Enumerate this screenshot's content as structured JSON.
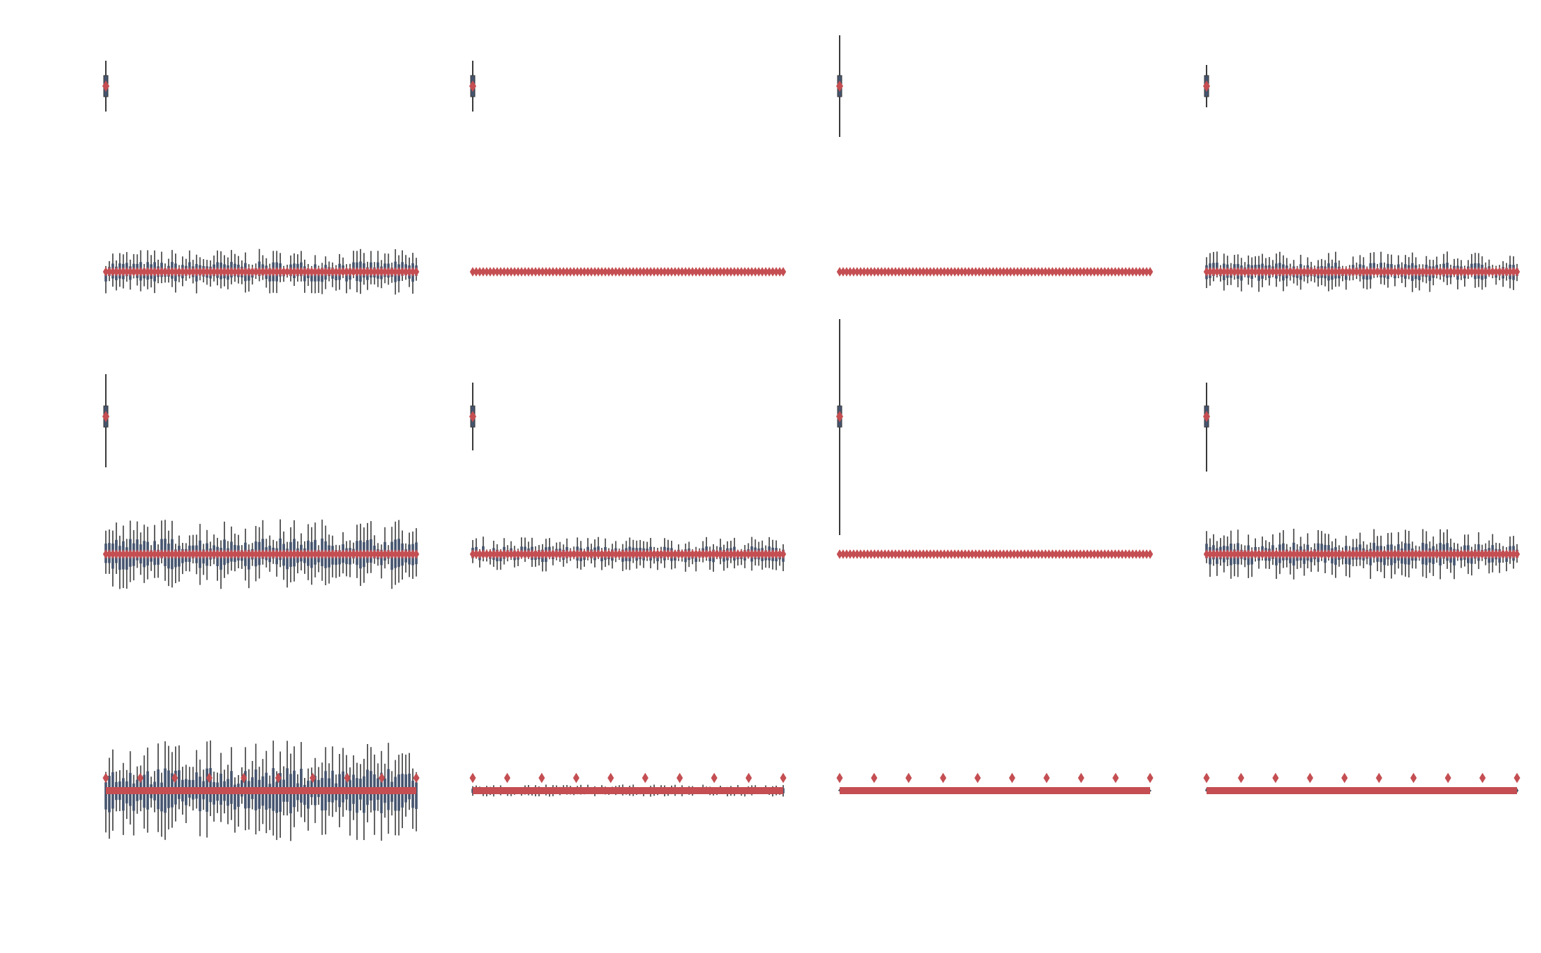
{
  "figure": {
    "background": "#ffffff",
    "colors": {
      "violin": "#45546e",
      "outline": "#3a3a3a",
      "median": "#c44e52"
    }
  },
  "chart_data": [
    {
      "type": "violin",
      "row": 0,
      "col": 0,
      "title": "",
      "xlabel": "",
      "ylabel": "",
      "grid": false,
      "series": [
        {
          "values": [
            {
              "x": 0,
              "median": 0,
              "lo": -0.6,
              "hi": 0.6
            }
          ]
        }
      ]
    },
    {
      "type": "violin",
      "row": 0,
      "col": 1,
      "title": "",
      "xlabel": "",
      "ylabel": "",
      "grid": false,
      "series": [
        {
          "values": [
            {
              "x": 0,
              "median": 0,
              "lo": -0.6,
              "hi": 0.6
            }
          ]
        }
      ]
    },
    {
      "type": "violin",
      "row": 0,
      "col": 2,
      "title": "",
      "xlabel": "",
      "ylabel": "",
      "grid": false,
      "series": [
        {
          "values": [
            {
              "x": 0,
              "median": 0,
              "lo": -1.2,
              "hi": 1.2
            }
          ]
        }
      ]
    },
    {
      "type": "violin",
      "row": 0,
      "col": 3,
      "title": "",
      "xlabel": "",
      "ylabel": "",
      "grid": false,
      "series": [
        {
          "values": [
            {
              "x": 0,
              "median": 0,
              "lo": -0.5,
              "hi": 0.5
            }
          ]
        }
      ]
    },
    {
      "type": "violin",
      "row": 1,
      "col": 0,
      "title": "",
      "grid": false,
      "count": 90,
      "spread": 0.45,
      "offset": 0
    },
    {
      "type": "violin",
      "row": 1,
      "col": 1,
      "title": "",
      "grid": false,
      "count": 90,
      "spread": 0.05,
      "offset": 0
    },
    {
      "type": "violin",
      "row": 1,
      "col": 2,
      "title": "",
      "grid": false,
      "count": 90,
      "spread": 0.0,
      "offset": 0
    },
    {
      "type": "violin",
      "row": 1,
      "col": 3,
      "title": "",
      "grid": false,
      "count": 90,
      "spread": 0.4,
      "offset": 0
    },
    {
      "type": "violin",
      "row": 2,
      "col": 0,
      "title": "",
      "grid": false,
      "series": [
        {
          "values": [
            {
              "x": 0,
              "median": 0,
              "lo": -1.2,
              "hi": 1.0
            }
          ]
        }
      ]
    },
    {
      "type": "violin",
      "row": 2,
      "col": 1,
      "title": "",
      "grid": false,
      "series": [
        {
          "values": [
            {
              "x": 0,
              "median": 0,
              "lo": -0.8,
              "hi": 0.8
            }
          ]
        }
      ]
    },
    {
      "type": "violin",
      "row": 2,
      "col": 2,
      "title": "",
      "grid": false,
      "series": [
        {
          "values": [
            {
              "x": 0,
              "median": 0,
              "lo": -2.8,
              "hi": 2.3
            }
          ]
        }
      ]
    },
    {
      "type": "violin",
      "row": 2,
      "col": 3,
      "title": "",
      "grid": false,
      "series": [
        {
          "values": [
            {
              "x": 0,
              "median": 0,
              "lo": -1.3,
              "hi": 0.8
            }
          ]
        }
      ]
    },
    {
      "type": "violin",
      "row": 3,
      "col": 0,
      "title": "",
      "grid": false,
      "count": 90,
      "spread": 0.7,
      "offset": 0
    },
    {
      "type": "violin",
      "row": 3,
      "col": 1,
      "title": "",
      "grid": false,
      "count": 90,
      "spread": 0.35,
      "offset": 0
    },
    {
      "type": "violin",
      "row": 3,
      "col": 2,
      "title": "",
      "grid": false,
      "count": 90,
      "spread": 0.02,
      "offset": 0
    },
    {
      "type": "violin",
      "row": 3,
      "col": 3,
      "title": "",
      "grid": false,
      "count": 90,
      "spread": 0.5,
      "offset": 0
    },
    {
      "type": "violin",
      "row": 4,
      "col": 0,
      "title": "",
      "grid": false,
      "count": 90,
      "spread": 1.0,
      "offset": 0,
      "markers": 10
    },
    {
      "type": "violin",
      "row": 4,
      "col": 1,
      "title": "",
      "grid": false,
      "count": 90,
      "spread": 0.12,
      "offset": 0,
      "markers": 10
    },
    {
      "type": "violin",
      "row": 4,
      "col": 2,
      "title": "",
      "grid": false,
      "count": 90,
      "spread": 0.05,
      "offset": 0,
      "markers": 10
    },
    {
      "type": "violin",
      "row": 4,
      "col": 3,
      "title": "",
      "grid": false,
      "count": 90,
      "spread": 0.06,
      "offset": 0,
      "markers": 10
    }
  ]
}
